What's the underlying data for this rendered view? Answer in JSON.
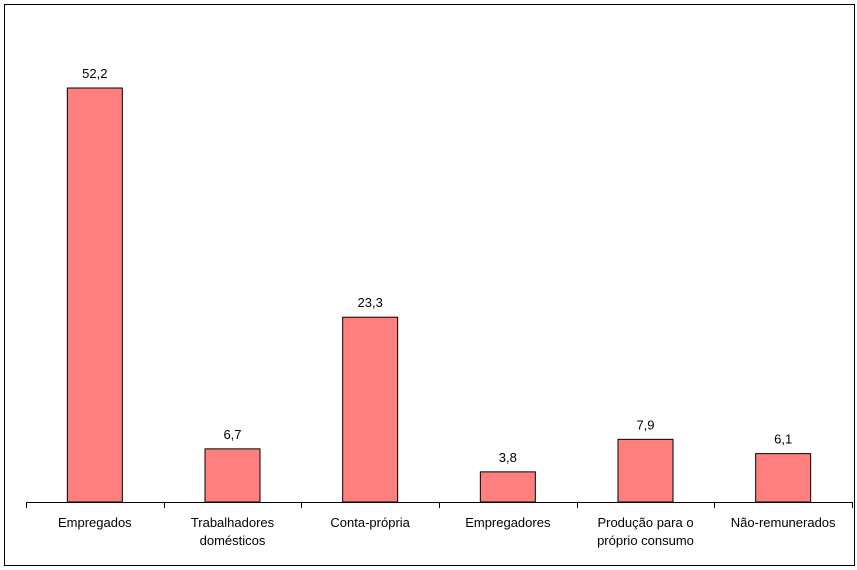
{
  "chart_data": {
    "type": "bar",
    "categories": [
      "Empregados",
      "Trabalhadores domésticos",
      "Conta-própria",
      "Empregadores",
      "Produção para o próprio consumo",
      "Não-remunerados"
    ],
    "values": [
      52.2,
      6.7,
      23.3,
      3.8,
      7.9,
      6.1
    ],
    "value_labels": [
      "52,2",
      "6,7",
      "23,3",
      "3,8",
      "7,9",
      "6,1"
    ],
    "color": "#ff7f7f"
  }
}
